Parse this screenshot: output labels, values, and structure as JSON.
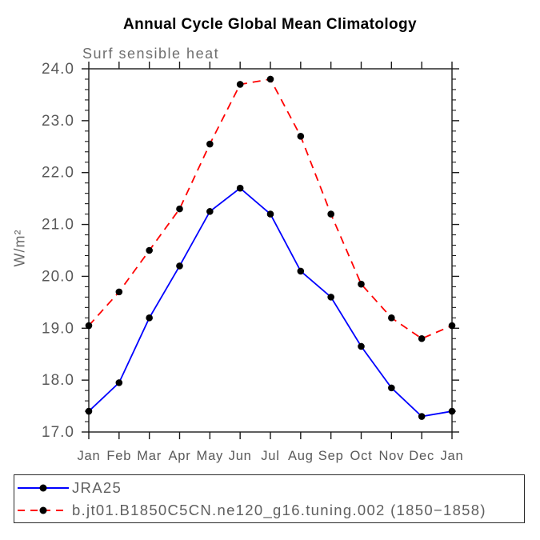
{
  "chart_data": {
    "type": "line",
    "title": "Annual Cycle Global Mean Climatology",
    "subtitle": "Surf sensible heat",
    "ylabel": "W/m²",
    "xlabel": "",
    "categories": [
      "Jan",
      "Feb",
      "Mar",
      "Apr",
      "May",
      "Jun",
      "Jul",
      "Aug",
      "Sep",
      "Oct",
      "Nov",
      "Dec",
      "Jan"
    ],
    "ylim": [
      17.0,
      24.0
    ],
    "ytick_step": 1.0,
    "yminor_step": 0.2,
    "ytick_format_decimals": 1,
    "grid": false,
    "legend_position": "bottom-left-box",
    "axis_color": "#1a1a1a",
    "tick_label_color": "#595959",
    "marker_color": "#000000",
    "series": [
      {
        "name": "JRA25",
        "color": "#0000ff",
        "line_style": "solid",
        "values": [
          17.4,
          17.95,
          19.2,
          20.2,
          21.25,
          21.7,
          21.2,
          20.1,
          19.6,
          18.65,
          17.85,
          17.3,
          17.4
        ]
      },
      {
        "name": "b.jt01.B1850C5CN.ne120_g16.tuning.002 (1850−1858)",
        "color": "#ff0000",
        "line_style": "dashed",
        "values": [
          19.05,
          19.7,
          20.5,
          21.3,
          22.55,
          23.7,
          23.8,
          22.7,
          21.2,
          19.85,
          19.2,
          18.8,
          19.05
        ]
      }
    ]
  }
}
